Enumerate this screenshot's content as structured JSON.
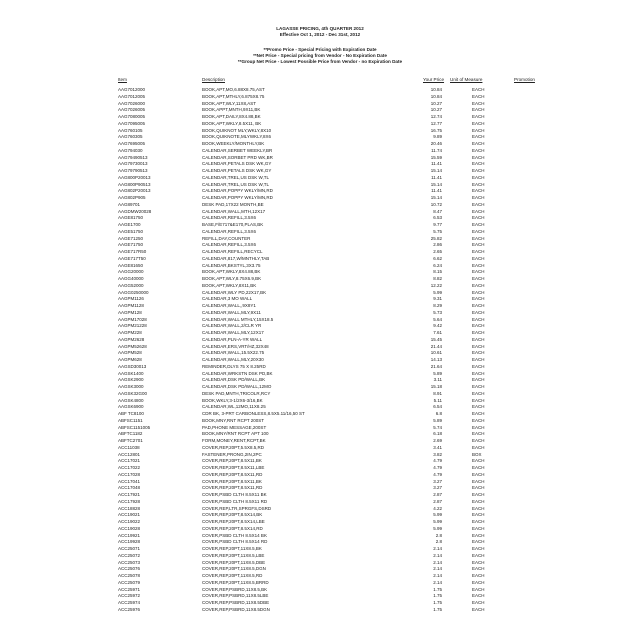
{
  "header": {
    "title": "LAGASSE PRICING, 4th QUARTER 2012",
    "effective": "Effective Oct 1, 2012 - Dec 31st, 2012",
    "notes": [
      "**Promo Price - Special Pricing with Expiration Date",
      "**Net Price - Special pricing from Vendor -  No Expiration Date",
      "**Group Net Price - Lowest Possible Price from Vendor - no Expiration Date"
    ]
  },
  "columns": {
    "item": "Item",
    "description": "Description",
    "price": "Your Price",
    "uom": "Unit of Measure",
    "promotion": "Promotion"
  },
  "rows": [
    [
      "AAG7012000",
      "BOOK,APT,MO,6.88X8.75,AST",
      "10.84",
      "EACH"
    ],
    [
      "AAG7012005",
      "BOOK,APT,MTHLY,6.875X8.75",
      "10.84",
      "EACH"
    ],
    [
      "AAG7026000",
      "BOOK,APT,WLY,11X8,AST",
      "10.27",
      "EACH"
    ],
    [
      "AAG7026005",
      "BOOK,APPT,MNTH,9X11,BK",
      "10.27",
      "EACH"
    ],
    [
      "AAG7080005",
      "BOOK,APT,DAILY,8X4.88,BK",
      "12.74",
      "EACH"
    ],
    [
      "AAG7095005",
      "BOOK,APT,WKLY,8.5X11, BK",
      "12.77",
      "EACH"
    ],
    [
      "AAG760105",
      "BOOK,QUIKNOT MLY,WKLY,8X10",
      "16.75",
      "EACH"
    ],
    [
      "AAG760305",
      "BOOK,QUIKNOTE,MLYWKLY,8X6",
      "9.89",
      "EACH"
    ],
    [
      "AAG7695005",
      "BOOK,WEEKLY/MONTHLY,BK",
      "20.46",
      "EACH"
    ],
    [
      "AAG794030",
      "CALENDAR,SERBET WEEKLY,BR",
      "11.74",
      "EACH"
    ],
    [
      "AAG79490513",
      "CALENDAR,SORBET PRD WK,BR",
      "15.59",
      "EACH"
    ],
    [
      "AAG79730013",
      "CALENDAR,PETALS DSK WK,GY",
      "11.41",
      "EACH"
    ],
    [
      "AAG79790513",
      "CALENDAR,PETALS DSK WK,GY",
      "15.14",
      "EACH"
    ],
    [
      "AAG800P20013",
      "CALENDAR,TREL,US DSK W,TL",
      "11.41",
      "EACH"
    ],
    [
      "AAG800P90513",
      "CALENDAR,TREL,US DSK W,TL",
      "15.14",
      "EACH"
    ],
    [
      "AAG802P20013",
      "CALENDAR,POPPY WKLY/MN,RD",
      "11.41",
      "EACH"
    ],
    [
      "AAG802P905",
      "CALENDAR,POPPY WKLY/MN,RD",
      "15.14",
      "EACH"
    ],
    [
      "AAG89701",
      "DESK PAD,17X22 MONTH,BE",
      "10.72",
      "EACH"
    ],
    [
      "AAGDMW20028",
      "CALENDAR,WALL,MTH,12X17",
      "8.47",
      "EACH"
    ],
    [
      "AAGE81750",
      "CALENDAR,REFILL,3.5X6",
      "6.53",
      "EACH"
    ],
    [
      "AAGE1700",
      "BASE,F/E717&E170,PLAS,BK",
      "9.77",
      "EACH"
    ],
    [
      "AAGE51750",
      "CALENDAR,REFILL,3.5X6",
      "5.75",
      "EACH"
    ],
    [
      "AAGE71250",
      "REFILL,DAY,COUNTER",
      "25.82",
      "EACH"
    ],
    [
      "AAGE71750",
      "CALENDAR,REFILL,3.5X6",
      "2.86",
      "EACH"
    ],
    [
      "AAGE717R50",
      "CALENDAR,REFILL,RECYCL",
      "2.65",
      "EACH"
    ],
    [
      "AAGE717T50",
      "CALENDAR,817,W/MNTHLY,TAB",
      "6.62",
      "EACH"
    ],
    [
      "AAGE81650",
      "CALENDAR,BKSTYL,3X3.75",
      "6.24",
      "EACH"
    ],
    [
      "AAGG20000",
      "BOOK,APT,WKLY,8X4.88,BK",
      "8.15",
      "EACH"
    ],
    [
      "AAGG40000",
      "BOOK,APT,WLY,8.75X6.9,BK",
      "8.82",
      "EACH"
    ],
    [
      "AAGG52000",
      "BOOK,APT,WKLY,8X11,BK",
      "12.22",
      "EACH"
    ],
    [
      "AAGG0250000",
      "CALENDAR,WLY PD,22X17,BK",
      "5.99",
      "EACH"
    ],
    [
      "AAGPM1126",
      "CALENDAR,3 MO WALL",
      "9.31",
      "EACH"
    ],
    [
      "AAGPM1128",
      "CALENDAR,WALL,,9X8Y1",
      "8.29",
      "EACH"
    ],
    [
      "AAGPM128",
      "CALENDAR,WALL,MLY,9X11",
      "5.73",
      "EACH"
    ],
    [
      "AAGPM17028",
      "CALENDAR,WALL MTHLY,15X18.5",
      "5.64",
      "EACH"
    ],
    [
      "AAGPM21228",
      "CALENDAR,WALL,2/CLR YR",
      "9.42",
      "EACH"
    ],
    [
      "AAGPM228",
      "CALENDAR,WALL,MLY,12X17",
      "7.61",
      "EACH"
    ],
    [
      "AAGPM2628",
      "CALENDAR,PLN-A-YR WALL",
      "15.45",
      "EACH"
    ],
    [
      "AAGPM52628",
      "CALENDAR,ERS,VRT/HZ,32X48",
      "21.44",
      "EACH"
    ],
    [
      "AAGPM528",
      "CALENDAR,WALL,15.5X22.75",
      "10.61",
      "EACH"
    ],
    [
      "AAGPM628",
      "CALENDAR,WALL,MLY,20X30",
      "14.13",
      "EACH"
    ],
    [
      "AAGSD30013",
      "REMINDER,DLYS 75 X 8.25RD",
      "21.64",
      "EACH"
    ],
    [
      "AAGSK1400",
      "CALENDAR,WRKSTN DSK PD,BK",
      "5.89",
      "EACH"
    ],
    [
      "AAGSK2900",
      "CALENDAR,DSK PD/WALL,BK",
      "3.11",
      "EACH"
    ],
    [
      "AAGSK3000",
      "CALENDAR,DSK PD/WALL,12MO",
      "15.18",
      "EACH"
    ],
    [
      "AAGSK32G00",
      "DESK PAD,MNTH,TRICOLR,RCY",
      "8.91",
      "EACH"
    ],
    [
      "AAGSK4800",
      "BOOK,WKLY,3-1/2X6-3/16,BK",
      "5.11",
      "EACH"
    ],
    [
      "AAGSK6900",
      "CALENDAR,WL,12MO,11X8.25",
      "6.54",
      "EACH"
    ],
    [
      "ABF TC8100",
      "CDR BK, 3-PRT CARBONLESS,8.5X5.11/16,50 ST",
      "6.8",
      "EACH"
    ],
    [
      "ABFSC1151",
      "BOOK,MNY,RNT RCPT 200ST",
      "5.89",
      "EACH"
    ],
    [
      "ABFSC1151005",
      "PAD,PHONE MESSAGE,200ST",
      "5.74",
      "EACH"
    ],
    [
      "ABFTC1182",
      "BOOK,MNY/RNT RCPT APT 100",
      "6.18",
      "EACH"
    ],
    [
      "ABFTC2701",
      "FORM,MONEY,RENT,RCPT,BK",
      "2.69",
      "EACH"
    ],
    [
      "ACC11038",
      "COVER,REP,20PT,5.5X8.5,RD",
      "3.41",
      "EACH"
    ],
    [
      "ACC12801",
      "FASTENER,PRONG,2IN,2PC",
      "3.82",
      "BOX"
    ],
    [
      "ACC17021",
      "COVER,REP,20PT,8.5X11,BK",
      "4.79",
      "EACH"
    ],
    [
      "ACC17022",
      "COVER,REP,20PT,8.5X11,LBE",
      "4.79",
      "EACH"
    ],
    [
      "ACC17028",
      "COVER,REP,20PT,8.5X11,RD",
      "4.79",
      "EACH"
    ],
    [
      "ACC17041",
      "COVER,REP,20PT,8.5X11,BK",
      "3.27",
      "EACH"
    ],
    [
      "ACC17048",
      "COVER,REP,20PT,8.5X11,RD",
      "3.27",
      "EACH"
    ],
    [
      "ACC17921",
      "COVER,PSBD CLTH 8.5X11 BK",
      "2.87",
      "EACH"
    ],
    [
      "ACC17928",
      "COVER,PSBD CLTH 8.5X11 RD",
      "2.87",
      "EACH"
    ],
    [
      "ACC18828",
      "COVER,REP,LTR,SPRGFS,DSRD",
      "4.22",
      "EACH"
    ],
    [
      "ACC19021",
      "COVER,REP,20PT,8.5X14,BK",
      "5.99",
      "EACH"
    ],
    [
      "ACC19022",
      "COVER,REP,20PT,8.5X14,LBE",
      "5.99",
      "EACH"
    ],
    [
      "ACC19028",
      "COVER,REP,20PT,8.5X14,RD",
      "5.99",
      "EACH"
    ],
    [
      "ACC19921",
      "COVER,PSBD CLTH 8.5X14 BK",
      "2.8",
      "EACH"
    ],
    [
      "ACC19928",
      "COVER,PSBD CLTH 8.5X14 RD",
      "2.8",
      "EACH"
    ],
    [
      "ACC25071",
      "COVER,REP,20PT,11X8.5,BK",
      "2.14",
      "EACH"
    ],
    [
      "ACC25072",
      "COVER,REP,20PT,11X8.5,LBE",
      "2.14",
      "EACH"
    ],
    [
      "ACC25073",
      "COVER,REP,20PT,11X8.5,DBE",
      "2.14",
      "EACH"
    ],
    [
      "ACC25076",
      "COVER,REP,20PT,11X8.5,DGN",
      "2.14",
      "EACH"
    ],
    [
      "ACC25078",
      "COVER,REP,20PT,11X8.5,RD",
      "2.14",
      "EACH"
    ],
    [
      "ACC25079",
      "COVER,REP,20PT,11X8.5,BRRD",
      "2.14",
      "EACH"
    ],
    [
      "ACC25971",
      "COVER,REP,PSBRD,11X8.5,BK",
      "1.75",
      "EACH"
    ],
    [
      "ACC25972",
      "COVER,REP,PSBRD,11X8.5LBE",
      "1.75",
      "EACH"
    ],
    [
      "ACC25974",
      "COVER,REP,PSBRD,11X8.5DBE",
      "1.75",
      "EACH"
    ],
    [
      "ACC25976",
      "COVER,REP,PSBRD,11X8.5DGN",
      "1.75",
      "EACH"
    ]
  ]
}
